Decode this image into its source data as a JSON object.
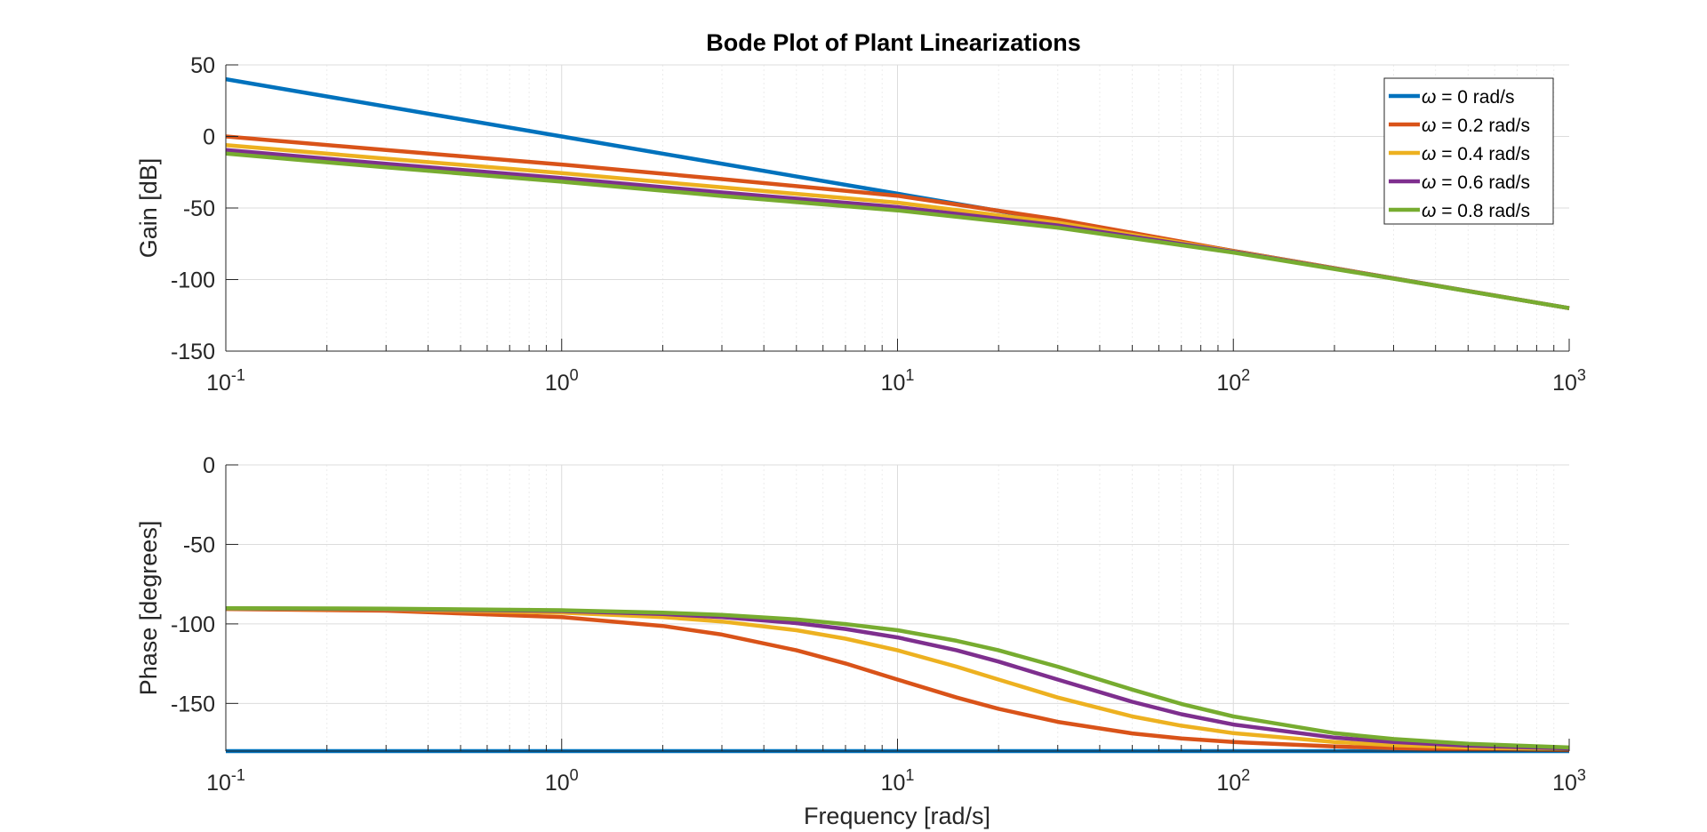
{
  "chart_data": {
    "type": "line",
    "title": "Bode Plot of Plant Linearizations",
    "legend_position": "top-right",
    "grid": true,
    "x_scale": "log",
    "xlim": [
      0.1,
      1000
    ],
    "x_ticks": [
      0.1,
      1,
      10,
      100,
      1000
    ],
    "x_tick_labels": [
      {
        "base": "10",
        "exp": "-1"
      },
      {
        "base": "10",
        "exp": "0"
      },
      {
        "base": "10",
        "exp": "1"
      },
      {
        "base": "10",
        "exp": "2"
      },
      {
        "base": "10",
        "exp": "3"
      }
    ],
    "xlabel": "Frequency [rad/s]",
    "series": [
      {
        "name": "ω = 0 rad/s",
        "symbol": "ω",
        "rest": " = 0 rad/s",
        "color": "#0072BD",
        "w": 0
      },
      {
        "name": "ω = 0.2 rad/s",
        "symbol": "ω",
        "rest": " = 0.2 rad/s",
        "color": "#D95319",
        "w": 0.2
      },
      {
        "name": "ω = 0.4 rad/s",
        "symbol": "ω",
        "rest": " = 0.4 rad/s",
        "color": "#EDB120",
        "w": 0.4
      },
      {
        "name": "ω = 0.6 rad/s",
        "symbol": "ω",
        "rest": " = 0.6 rad/s",
        "color": "#7E2F8E",
        "w": 0.6
      },
      {
        "name": "ω = 0.8 rad/s",
        "symbol": "ω",
        "rest": " = 0.8 rad/s",
        "color": "#77AC30",
        "w": 0.8
      }
    ],
    "panels": [
      {
        "id": "gain",
        "ylabel": "Gain [dB]",
        "ylim": [
          -150,
          50
        ],
        "y_ticks": [
          50,
          0,
          -50,
          -100,
          -150
        ],
        "series_points": [
          {
            "x": [
              0.1,
              1,
              10,
              100,
              1000
            ],
            "y": [
              40,
              0,
              -40,
              -80,
              -120
            ]
          },
          {
            "x": [
              0.1,
              0.3,
              1,
              3,
              10,
              30,
              100,
              300,
              1000
            ],
            "y": [
              0,
              -9.5,
              -19.6,
              -29.8,
              -41.4,
              -58.1,
              -80.0,
              -99.1,
              -120
            ]
          },
          {
            "x": [
              0.1,
              0.3,
              1,
              3,
              10,
              30,
              100,
              300,
              1000
            ],
            "y": [
              -6,
              -15.5,
              -25.6,
              -35.6,
              -46.3,
              -60.3,
              -80.3,
              -99.2,
              -120
            ]
          },
          {
            "x": [
              0.1,
              0.3,
              1,
              3,
              10,
              30,
              100,
              300,
              1000
            ],
            "y": [
              -9.5,
              -19.1,
              -29.1,
              -39.1,
              -49.4,
              -62.2,
              -80.6,
              -99.3,
              -120
            ]
          },
          {
            "x": [
              0.1,
              0.3,
              1,
              3,
              10,
              30,
              100,
              300,
              1000
            ],
            "y": [
              -12,
              -21.6,
              -31.6,
              -41.6,
              -51.7,
              -63.8,
              -81.1,
              -99.4,
              -120
            ]
          }
        ]
      },
      {
        "id": "phase",
        "ylabel": "Phase [degrees]",
        "ylim": [
          -180,
          0
        ],
        "y_ticks": [
          0,
          -50,
          -100,
          -150
        ],
        "series_points": [
          {
            "x": [
              0.1,
              1,
              10,
              100,
              1000
            ],
            "y": [
              -180,
              -180,
              -180,
              -180,
              -180
            ]
          },
          {
            "x": [
              0.1,
              0.3,
              1,
              2,
              3,
              5,
              7,
              10,
              15,
              20,
              30,
              50,
              70,
              100,
              200,
              300,
              500,
              1000
            ],
            "y": [
              -90.6,
              -91.7,
              -95.7,
              -101.3,
              -106.7,
              -116.6,
              -124.9,
              -135.0,
              -146.3,
              -153.4,
              -161.6,
              -168.9,
              -172.0,
              -174.3,
              -177.1,
              -178.1,
              -178.9,
              -179.4
            ]
          },
          {
            "x": [
              0.1,
              0.3,
              1,
              2,
              3,
              5,
              7,
              10,
              15,
              20,
              30,
              50,
              70,
              100,
              200,
              300,
              500,
              1000
            ],
            "y": [
              -90.3,
              -90.9,
              -92.9,
              -95.7,
              -98.5,
              -104.0,
              -109.3,
              -116.6,
              -126.9,
              -135.0,
              -146.3,
              -158.2,
              -164.0,
              -168.7,
              -174.3,
              -176.2,
              -177.7,
              -178.9
            ]
          },
          {
            "x": [
              0.1,
              0.3,
              1,
              2,
              3,
              5,
              7,
              10,
              15,
              20,
              30,
              50,
              70,
              100,
              200,
              300,
              500,
              1000
            ],
            "y": [
              -90.2,
              -90.6,
              -91.9,
              -93.8,
              -95.7,
              -99.5,
              -103.2,
              -108.5,
              -116.6,
              -123.7,
              -135.0,
              -149.0,
              -156.8,
              -163.3,
              -171.5,
              -174.3,
              -176.6,
              -178.3
            ]
          },
          {
            "x": [
              0.1,
              0.3,
              1,
              2,
              3,
              5,
              7,
              10,
              15,
              20,
              30,
              50,
              70,
              100,
              200,
              300,
              500,
              1000
            ],
            "y": [
              -90.1,
              -90.4,
              -91.4,
              -92.9,
              -94.3,
              -97.2,
              -100.1,
              -104.0,
              -110.6,
              -116.6,
              -126.9,
              -141.3,
              -150.3,
              -158.2,
              -168.7,
              -172.4,
              -175.4,
              -177.7
            ]
          }
        ]
      }
    ]
  }
}
